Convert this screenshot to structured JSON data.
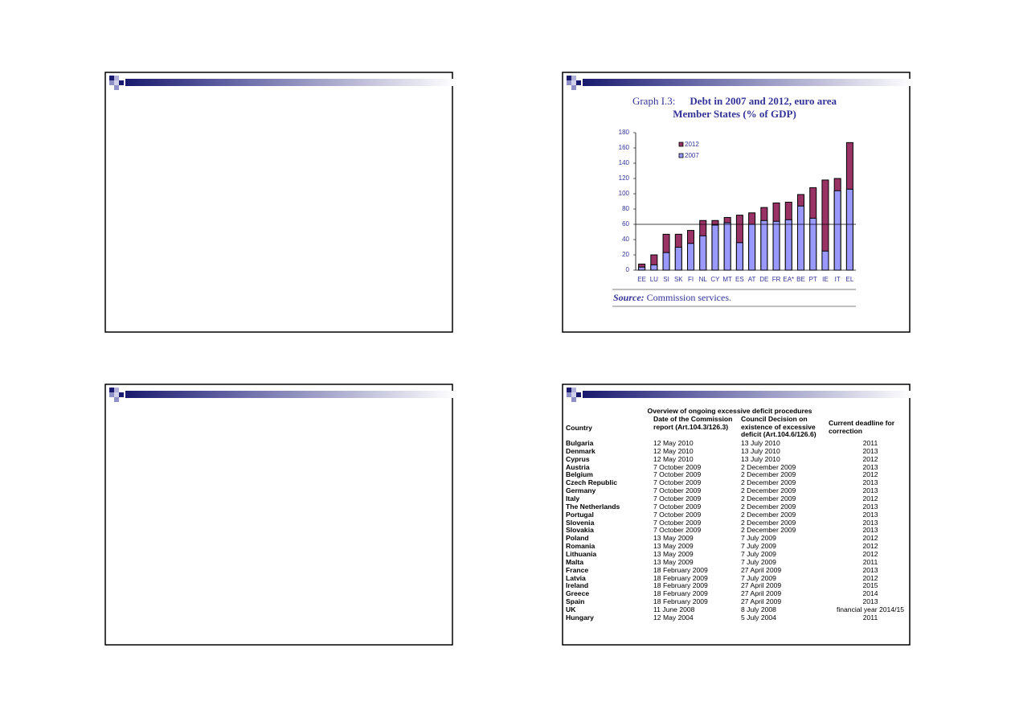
{
  "chart_data": {
    "type": "bar",
    "label": "Graph I.3:",
    "title": "Debt in 2007 and 2012, euro area Member States (% of GDP)",
    "categories": [
      "EE",
      "LU",
      "SI",
      "SK",
      "FI",
      "NL",
      "CY",
      "MT",
      "ES",
      "AT",
      "DE",
      "FR",
      "EA*",
      "BE",
      "PT",
      "IE",
      "IT",
      "EL"
    ],
    "series": [
      {
        "name": "2012",
        "color": "#993366",
        "values": [
          8,
          20,
          47,
          47,
          52,
          65,
          65,
          69,
          72,
          75,
          82,
          88,
          89,
          99,
          108,
          118,
          120,
          167
        ]
      },
      {
        "name": "2007",
        "color": "#9999ff",
        "values": [
          4,
          7,
          23,
          30,
          35,
          45,
          59,
          62,
          36,
          60,
          65,
          64,
          66,
          84,
          68,
          25,
          104,
          106
        ]
      }
    ],
    "ylim": [
      0,
      180
    ],
    "yticks": [
      0,
      20,
      40,
      60,
      80,
      100,
      120,
      140,
      160,
      180
    ],
    "reference_line": 60,
    "overlay": true,
    "source_label": "Source:",
    "source": "Commission services."
  },
  "table": {
    "title": "Overview of ongoing excessive deficit procedures",
    "header": [
      "Country",
      "Date of the Commission report (Art.104.3/126.3)",
      "Council Decision on existence of excessive deficit (Art.104.6/126.6)",
      "Current deadline for correction"
    ],
    "rows": [
      [
        "Bulgaria",
        "12 May 2010",
        "13 July 2010",
        2011
      ],
      [
        "Denmark",
        "12 May 2010",
        "13 July 2010",
        2013
      ],
      [
        "Cyprus",
        "12 May 2010",
        "13 July 2010",
        2012
      ],
      [
        "Austria",
        "7 October 2009",
        "2 December 2009",
        2013
      ],
      [
        "Belgium",
        "7 October 2009",
        "2 December 2009",
        2012
      ],
      [
        "Czech Republic",
        "7 October 2009",
        "2 December 2009",
        2013
      ],
      [
        "Germany",
        "7 October 2009",
        "2 December 2009",
        2013
      ],
      [
        "Italy",
        "7 October 2009",
        "2 December 2009",
        2012
      ],
      [
        "The Netherlands",
        "7 October 2009",
        "2 December 2009",
        2013
      ],
      [
        "Portugal",
        "7 October 2009",
        "2 December 2009",
        2013
      ],
      [
        "Slovenia",
        "7 October 2009",
        "2 December 2009",
        2013
      ],
      [
        "Slovakia",
        "7 October 2009",
        "2 December 2009",
        2013
      ],
      [
        "Poland",
        "13 May 2009",
        "7 July 2009",
        2012
      ],
      [
        "Romania",
        "13 May 2009",
        "7 July 2009",
        2012
      ],
      [
        "Lithuania",
        "13 May 2009",
        "7 July 2009",
        2012
      ],
      [
        "Malta",
        "13 May 2009",
        "7 July 2009",
        2011
      ],
      [
        "France",
        "18 February 2009",
        "27 April 2009",
        2013
      ],
      [
        "Latvia",
        "18 February 2009",
        "7 July 2009",
        2012
      ],
      [
        "Ireland",
        "18 February 2009",
        "27 April 2009",
        2015
      ],
      [
        "Greece",
        "18 February 2009",
        "27 April 2009",
        2014
      ],
      [
        "Spain",
        "18 February 2009",
        "27 April 2009",
        2013
      ],
      [
        "UK",
        "11 June 2008",
        "8 July 2008",
        "financial year 2014/15"
      ],
      [
        "Hungary",
        "12 May 2004",
        "5 July 2004",
        2011
      ]
    ]
  }
}
